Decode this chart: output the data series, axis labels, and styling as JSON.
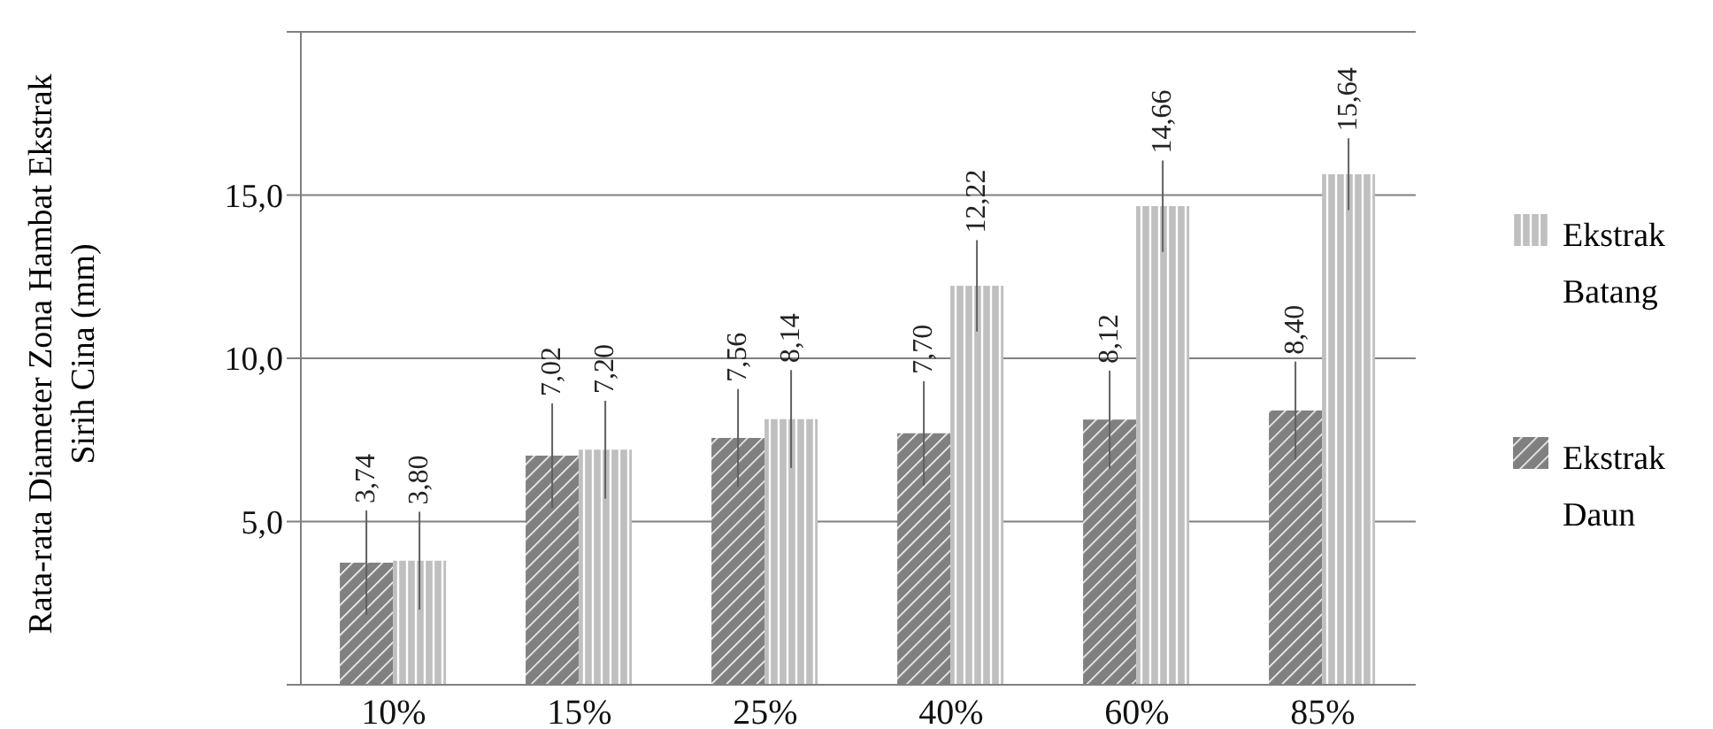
{
  "chart_data": {
    "type": "bar",
    "ylabel": "Rata-rata Diameter Zona Hambat Ekstrak Sirih Cina (mm)",
    "categories": [
      "10%",
      "15%",
      "25%",
      "40%",
      "60%",
      "85%"
    ],
    "series": [
      {
        "name": "Ekstrak Daun",
        "color": "#808080",
        "values": [
          3.74,
          7.02,
          7.56,
          7.7,
          8.12,
          8.4
        ],
        "errors": [
          1.6,
          1.6,
          1.5,
          1.6,
          1.5,
          1.5
        ],
        "value_labels": [
          "3,74",
          "7,02",
          "7,56",
          "7,70",
          "8,12",
          "8,40"
        ]
      },
      {
        "name": "Ekstrak Batang",
        "color": "#bfbfbf",
        "values": [
          3.8,
          7.2,
          8.14,
          12.22,
          14.66,
          15.64
        ],
        "errors": [
          1.5,
          1.5,
          1.5,
          1.4,
          1.4,
          1.1
        ],
        "value_labels": [
          "3,80",
          "7,20",
          "8,14",
          "12,22",
          "14,66",
          "15,64"
        ]
      }
    ],
    "ylim": [
      0,
      20
    ],
    "yticks": [
      {
        "value": 0,
        "label": null
      },
      {
        "value": 5,
        "label": "5,0"
      },
      {
        "value": 10,
        "label": "10,0"
      },
      {
        "value": 15,
        "label": "15,0"
      },
      {
        "value": 20,
        "label": null
      }
    ],
    "grid": "y",
    "legend": "right"
  }
}
